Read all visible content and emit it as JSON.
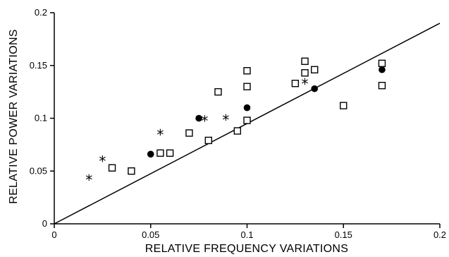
{
  "chart_data": {
    "type": "scatter",
    "xlabel": "RELATIVE FREQUENCY VARIATIONS",
    "ylabel": "RELATIVE POWER VARIATIONS",
    "xlim": [
      0,
      0.2
    ],
    "ylim": [
      0,
      0.2
    ],
    "x_ticks": [
      "0",
      "0.05",
      "0.1",
      "0.15",
      "0.2"
    ],
    "y_ticks": [
      "0",
      "0.05",
      "0.1",
      "0.15",
      "0.2"
    ],
    "grid": false,
    "reference_line": {
      "x": [
        0,
        0.2
      ],
      "y": [
        0,
        0.19
      ]
    },
    "series": [
      {
        "marker": "square-open",
        "points": [
          [
            0.03,
            0.053
          ],
          [
            0.04,
            0.05
          ],
          [
            0.055,
            0.067
          ],
          [
            0.06,
            0.067
          ],
          [
            0.07,
            0.086
          ],
          [
            0.08,
            0.079
          ],
          [
            0.085,
            0.125
          ],
          [
            0.095,
            0.088
          ],
          [
            0.1,
            0.098
          ],
          [
            0.1,
            0.13
          ],
          [
            0.1,
            0.145
          ],
          [
            0.125,
            0.133
          ],
          [
            0.13,
            0.143
          ],
          [
            0.13,
            0.154
          ],
          [
            0.135,
            0.146
          ],
          [
            0.15,
            0.112
          ],
          [
            0.17,
            0.152
          ],
          [
            0.17,
            0.131
          ]
        ]
      },
      {
        "marker": "circle-filled",
        "points": [
          [
            0.05,
            0.066
          ],
          [
            0.075,
            0.1
          ],
          [
            0.1,
            0.11
          ],
          [
            0.135,
            0.128
          ],
          [
            0.17,
            0.146
          ]
        ]
      },
      {
        "marker": "asterisk",
        "points": [
          [
            0.018,
            0.042
          ],
          [
            0.025,
            0.06
          ],
          [
            0.055,
            0.085
          ],
          [
            0.078,
            0.098
          ],
          [
            0.089,
            0.099
          ],
          [
            0.13,
            0.133
          ]
        ]
      }
    ]
  }
}
